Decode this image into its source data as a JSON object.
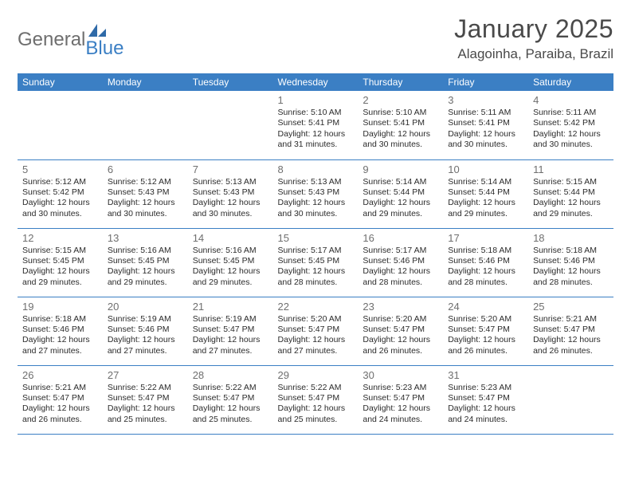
{
  "colors": {
    "header_bg": "#3b7fc4",
    "header_text": "#ffffff",
    "row_border": "#3b7fc4",
    "page_bg": "#ffffff",
    "daynum_color": "#6f6f6f",
    "detail_color": "#2b2b2b",
    "title_color": "#4a4a4a",
    "logo_gray": "#6e6e6e",
    "logo_blue": "#3b7fc4"
  },
  "logo": {
    "part1": "General",
    "part2": "Blue"
  },
  "title": "January 2025",
  "location": "Alagoinha, Paraiba, Brazil",
  "weekdays": [
    "Sunday",
    "Monday",
    "Tuesday",
    "Wednesday",
    "Thursday",
    "Friday",
    "Saturday"
  ],
  "weeks": [
    [
      {
        "n": "",
        "sr": "",
        "ss": "",
        "dl": ""
      },
      {
        "n": "",
        "sr": "",
        "ss": "",
        "dl": ""
      },
      {
        "n": "",
        "sr": "",
        "ss": "",
        "dl": ""
      },
      {
        "n": "1",
        "sr": "Sunrise: 5:10 AM",
        "ss": "Sunset: 5:41 PM",
        "dl": "Daylight: 12 hours and 31 minutes."
      },
      {
        "n": "2",
        "sr": "Sunrise: 5:10 AM",
        "ss": "Sunset: 5:41 PM",
        "dl": "Daylight: 12 hours and 30 minutes."
      },
      {
        "n": "3",
        "sr": "Sunrise: 5:11 AM",
        "ss": "Sunset: 5:41 PM",
        "dl": "Daylight: 12 hours and 30 minutes."
      },
      {
        "n": "4",
        "sr": "Sunrise: 5:11 AM",
        "ss": "Sunset: 5:42 PM",
        "dl": "Daylight: 12 hours and 30 minutes."
      }
    ],
    [
      {
        "n": "5",
        "sr": "Sunrise: 5:12 AM",
        "ss": "Sunset: 5:42 PM",
        "dl": "Daylight: 12 hours and 30 minutes."
      },
      {
        "n": "6",
        "sr": "Sunrise: 5:12 AM",
        "ss": "Sunset: 5:43 PM",
        "dl": "Daylight: 12 hours and 30 minutes."
      },
      {
        "n": "7",
        "sr": "Sunrise: 5:13 AM",
        "ss": "Sunset: 5:43 PM",
        "dl": "Daylight: 12 hours and 30 minutes."
      },
      {
        "n": "8",
        "sr": "Sunrise: 5:13 AM",
        "ss": "Sunset: 5:43 PM",
        "dl": "Daylight: 12 hours and 30 minutes."
      },
      {
        "n": "9",
        "sr": "Sunrise: 5:14 AM",
        "ss": "Sunset: 5:44 PM",
        "dl": "Daylight: 12 hours and 29 minutes."
      },
      {
        "n": "10",
        "sr": "Sunrise: 5:14 AM",
        "ss": "Sunset: 5:44 PM",
        "dl": "Daylight: 12 hours and 29 minutes."
      },
      {
        "n": "11",
        "sr": "Sunrise: 5:15 AM",
        "ss": "Sunset: 5:44 PM",
        "dl": "Daylight: 12 hours and 29 minutes."
      }
    ],
    [
      {
        "n": "12",
        "sr": "Sunrise: 5:15 AM",
        "ss": "Sunset: 5:45 PM",
        "dl": "Daylight: 12 hours and 29 minutes."
      },
      {
        "n": "13",
        "sr": "Sunrise: 5:16 AM",
        "ss": "Sunset: 5:45 PM",
        "dl": "Daylight: 12 hours and 29 minutes."
      },
      {
        "n": "14",
        "sr": "Sunrise: 5:16 AM",
        "ss": "Sunset: 5:45 PM",
        "dl": "Daylight: 12 hours and 29 minutes."
      },
      {
        "n": "15",
        "sr": "Sunrise: 5:17 AM",
        "ss": "Sunset: 5:45 PM",
        "dl": "Daylight: 12 hours and 28 minutes."
      },
      {
        "n": "16",
        "sr": "Sunrise: 5:17 AM",
        "ss": "Sunset: 5:46 PM",
        "dl": "Daylight: 12 hours and 28 minutes."
      },
      {
        "n": "17",
        "sr": "Sunrise: 5:18 AM",
        "ss": "Sunset: 5:46 PM",
        "dl": "Daylight: 12 hours and 28 minutes."
      },
      {
        "n": "18",
        "sr": "Sunrise: 5:18 AM",
        "ss": "Sunset: 5:46 PM",
        "dl": "Daylight: 12 hours and 28 minutes."
      }
    ],
    [
      {
        "n": "19",
        "sr": "Sunrise: 5:18 AM",
        "ss": "Sunset: 5:46 PM",
        "dl": "Daylight: 12 hours and 27 minutes."
      },
      {
        "n": "20",
        "sr": "Sunrise: 5:19 AM",
        "ss": "Sunset: 5:46 PM",
        "dl": "Daylight: 12 hours and 27 minutes."
      },
      {
        "n": "21",
        "sr": "Sunrise: 5:19 AM",
        "ss": "Sunset: 5:47 PM",
        "dl": "Daylight: 12 hours and 27 minutes."
      },
      {
        "n": "22",
        "sr": "Sunrise: 5:20 AM",
        "ss": "Sunset: 5:47 PM",
        "dl": "Daylight: 12 hours and 27 minutes."
      },
      {
        "n": "23",
        "sr": "Sunrise: 5:20 AM",
        "ss": "Sunset: 5:47 PM",
        "dl": "Daylight: 12 hours and 26 minutes."
      },
      {
        "n": "24",
        "sr": "Sunrise: 5:20 AM",
        "ss": "Sunset: 5:47 PM",
        "dl": "Daylight: 12 hours and 26 minutes."
      },
      {
        "n": "25",
        "sr": "Sunrise: 5:21 AM",
        "ss": "Sunset: 5:47 PM",
        "dl": "Daylight: 12 hours and 26 minutes."
      }
    ],
    [
      {
        "n": "26",
        "sr": "Sunrise: 5:21 AM",
        "ss": "Sunset: 5:47 PM",
        "dl": "Daylight: 12 hours and 26 minutes."
      },
      {
        "n": "27",
        "sr": "Sunrise: 5:22 AM",
        "ss": "Sunset: 5:47 PM",
        "dl": "Daylight: 12 hours and 25 minutes."
      },
      {
        "n": "28",
        "sr": "Sunrise: 5:22 AM",
        "ss": "Sunset: 5:47 PM",
        "dl": "Daylight: 12 hours and 25 minutes."
      },
      {
        "n": "29",
        "sr": "Sunrise: 5:22 AM",
        "ss": "Sunset: 5:47 PM",
        "dl": "Daylight: 12 hours and 25 minutes."
      },
      {
        "n": "30",
        "sr": "Sunrise: 5:23 AM",
        "ss": "Sunset: 5:47 PM",
        "dl": "Daylight: 12 hours and 24 minutes."
      },
      {
        "n": "31",
        "sr": "Sunrise: 5:23 AM",
        "ss": "Sunset: 5:47 PM",
        "dl": "Daylight: 12 hours and 24 minutes."
      },
      {
        "n": "",
        "sr": "",
        "ss": "",
        "dl": ""
      }
    ]
  ]
}
